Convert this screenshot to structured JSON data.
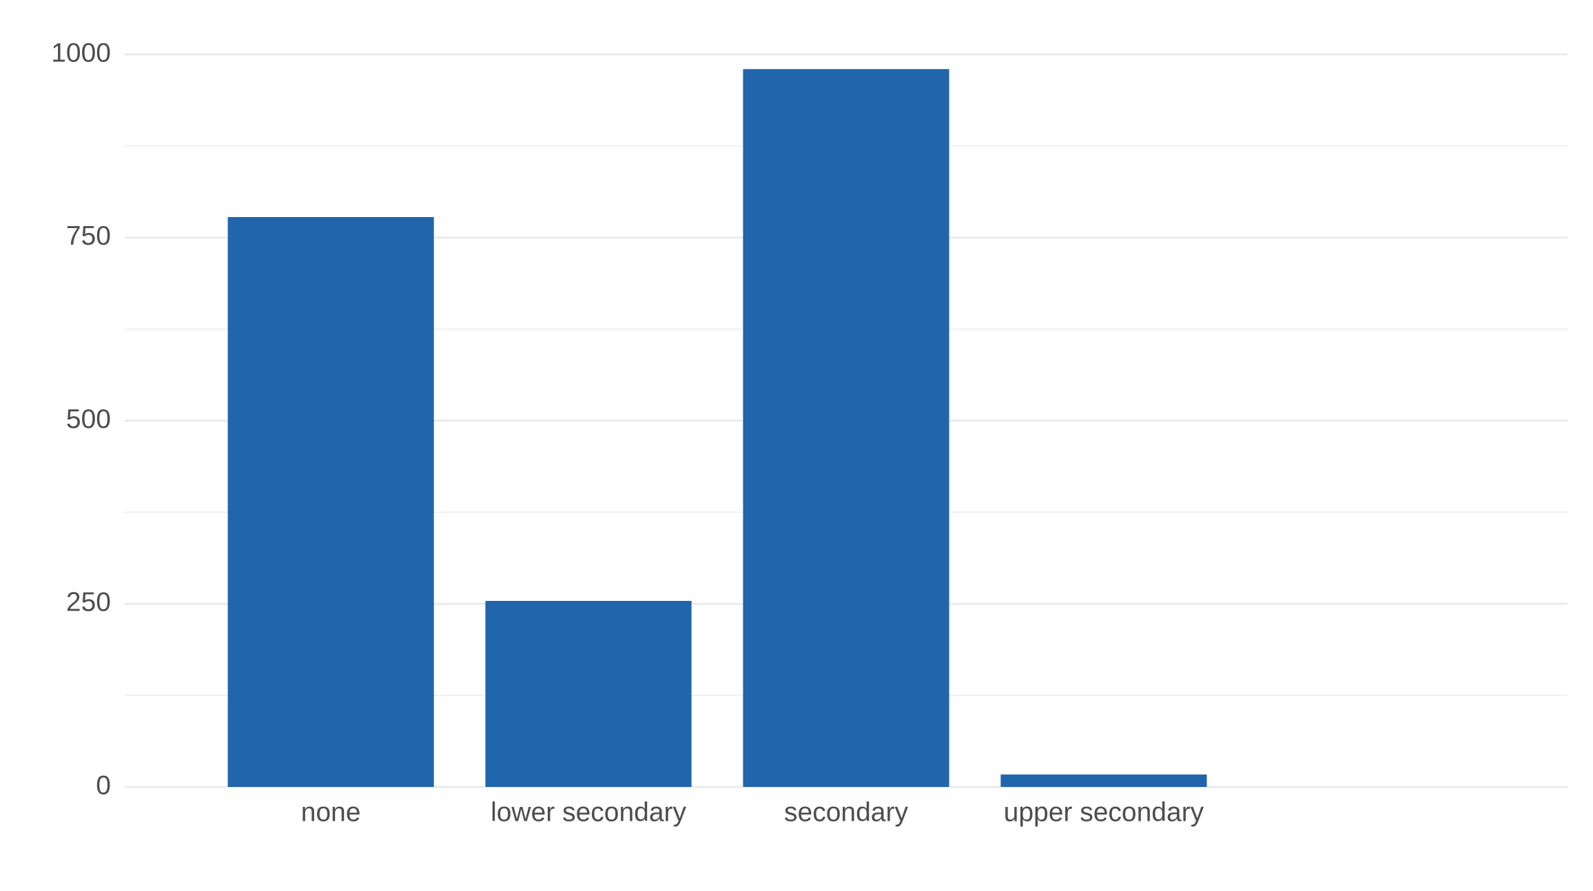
{
  "chart_data": {
    "type": "bar",
    "categories": [
      "none",
      "lower secondary",
      "secondary",
      "upper secondary"
    ],
    "values": [
      778,
      254,
      980,
      17
    ],
    "color": "#2166ac",
    "ylim": [
      0,
      1000
    ],
    "yticks": [
      0,
      250,
      500,
      750,
      1000
    ],
    "grid": true
  }
}
